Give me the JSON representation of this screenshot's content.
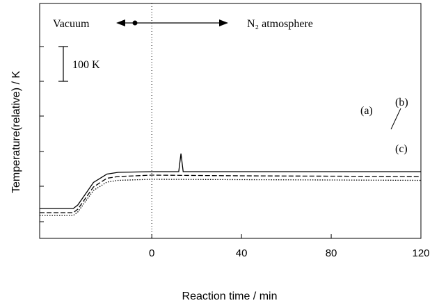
{
  "chart_data": {
    "type": "line",
    "xlabel": "Reaction time / min",
    "ylabel": "Temperature(relative) / K",
    "xlim": [
      -50,
      120
    ],
    "x_ticks": [
      0,
      40,
      80,
      120
    ],
    "y_ticks_unlabeled": true,
    "grid": false,
    "annotations": {
      "vacuum": "Vacuum",
      "atmosphere": "N₂ atmosphere",
      "scale_bar": "100 K",
      "scale_bar_value": 100
    },
    "series": [
      {
        "name": "(a)",
        "style": "solid",
        "points": [
          [
            -50,
            0
          ],
          [
            -35,
            0
          ],
          [
            -33,
            10
          ],
          [
            -26,
            75
          ],
          [
            -20,
            99
          ],
          [
            -15,
            104
          ],
          [
            0,
            106
          ],
          [
            10,
            106
          ],
          [
            12,
            106
          ],
          [
            13,
            158
          ],
          [
            14,
            106
          ],
          [
            120,
            106
          ]
        ]
      },
      {
        "name": "(b)",
        "style": "dashed",
        "points": [
          [
            -50,
            -12
          ],
          [
            -35,
            -12
          ],
          [
            -33,
            -2
          ],
          [
            -26,
            62
          ],
          [
            -20,
            87
          ],
          [
            -15,
            92
          ],
          [
            0,
            96
          ],
          [
            40,
            94
          ],
          [
            80,
            93
          ],
          [
            120,
            92
          ]
        ]
      },
      {
        "name": "(c)",
        "style": "dotted",
        "points": [
          [
            -50,
            -20
          ],
          [
            -35,
            -20
          ],
          [
            -33,
            -10
          ],
          [
            -26,
            52
          ],
          [
            -20,
            76
          ],
          [
            -15,
            81
          ],
          [
            0,
            84
          ],
          [
            40,
            83
          ],
          [
            80,
            82
          ],
          [
            120,
            81
          ]
        ]
      }
    ]
  }
}
